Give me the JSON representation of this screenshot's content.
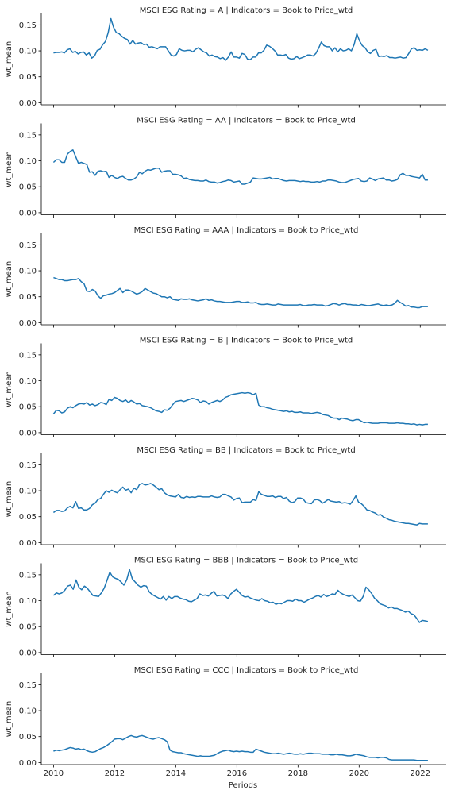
{
  "figure": {
    "xlabel": "Periods",
    "ylabel": "wt_mean"
  },
  "chart_data": [
    {
      "type": "line",
      "title": "MSCI ESG Rating = A | Indicators = Book to Price_wtd",
      "xlabel": "",
      "ylabel": "wt_mean",
      "xlim": [
        2009.6,
        2022.85
      ],
      "ylim": [
        -0.004,
        0.172
      ],
      "xticks": [
        2010,
        2012,
        2014,
        2016,
        2018,
        2020,
        2022
      ],
      "yticks": [
        0.0,
        0.05,
        0.1,
        0.15
      ],
      "ytick_labels": [
        "0.00",
        "0.05",
        "0.10",
        "0.15"
      ],
      "x_start": 2010.0,
      "x_end": 2022.25,
      "values": [
        0.096,
        0.097,
        0.097,
        0.098,
        0.096,
        0.102,
        0.104,
        0.097,
        0.099,
        0.094,
        0.097,
        0.098,
        0.092,
        0.096,
        0.086,
        0.09,
        0.101,
        0.103,
        0.112,
        0.118,
        0.135,
        0.162,
        0.145,
        0.135,
        0.133,
        0.128,
        0.124,
        0.122,
        0.113,
        0.12,
        0.113,
        0.115,
        0.116,
        0.112,
        0.113,
        0.107,
        0.108,
        0.106,
        0.104,
        0.108,
        0.108,
        0.108,
        0.1,
        0.092,
        0.09,
        0.093,
        0.104,
        0.101,
        0.1,
        0.101,
        0.101,
        0.098,
        0.103,
        0.106,
        0.102,
        0.098,
        0.096,
        0.09,
        0.092,
        0.089,
        0.088,
        0.085,
        0.087,
        0.082,
        0.088,
        0.098,
        0.088,
        0.088,
        0.086,
        0.095,
        0.093,
        0.084,
        0.083,
        0.088,
        0.088,
        0.096,
        0.096,
        0.101,
        0.111,
        0.109,
        0.105,
        0.1,
        0.092,
        0.092,
        0.091,
        0.093,
        0.086,
        0.084,
        0.085,
        0.089,
        0.085,
        0.087,
        0.089,
        0.092,
        0.092,
        0.09,
        0.095,
        0.105,
        0.117,
        0.11,
        0.108,
        0.108,
        0.1,
        0.106,
        0.098,
        0.104,
        0.1,
        0.101,
        0.104,
        0.1,
        0.112,
        0.133,
        0.119,
        0.11,
        0.106,
        0.098,
        0.095,
        0.101,
        0.103,
        0.089,
        0.09,
        0.089,
        0.091,
        0.087,
        0.087,
        0.086,
        0.087,
        0.088,
        0.086,
        0.087,
        0.095,
        0.104,
        0.106,
        0.101,
        0.102,
        0.101,
        0.104,
        0.101
      ]
    },
    {
      "type": "line",
      "title": "MSCI ESG Rating = AA | Indicators = Book to Price_wtd",
      "xlabel": "",
      "ylabel": "wt_mean",
      "xlim": [
        2009.6,
        2022.85
      ],
      "ylim": [
        -0.004,
        0.172
      ],
      "xticks": [
        2010,
        2012,
        2014,
        2016,
        2018,
        2020,
        2022
      ],
      "yticks": [
        0.0,
        0.05,
        0.1,
        0.15
      ],
      "ytick_labels": [
        "0.00",
        "0.05",
        "0.10",
        "0.15"
      ],
      "x_start": 2010.0,
      "x_end": 2022.25,
      "values": [
        0.097,
        0.102,
        0.102,
        0.097,
        0.097,
        0.113,
        0.118,
        0.121,
        0.108,
        0.095,
        0.097,
        0.095,
        0.093,
        0.078,
        0.079,
        0.072,
        0.08,
        0.081,
        0.079,
        0.08,
        0.068,
        0.072,
        0.068,
        0.066,
        0.069,
        0.07,
        0.066,
        0.063,
        0.063,
        0.065,
        0.069,
        0.078,
        0.075,
        0.08,
        0.083,
        0.082,
        0.084,
        0.086,
        0.086,
        0.078,
        0.08,
        0.081,
        0.081,
        0.074,
        0.074,
        0.073,
        0.071,
        0.066,
        0.067,
        0.064,
        0.063,
        0.062,
        0.062,
        0.061,
        0.061,
        0.063,
        0.06,
        0.059,
        0.059,
        0.057,
        0.058,
        0.06,
        0.061,
        0.063,
        0.062,
        0.059,
        0.06,
        0.061,
        0.055,
        0.055,
        0.057,
        0.059,
        0.067,
        0.066,
        0.065,
        0.065,
        0.066,
        0.067,
        0.068,
        0.065,
        0.066,
        0.066,
        0.064,
        0.062,
        0.061,
        0.062,
        0.062,
        0.062,
        0.061,
        0.06,
        0.061,
        0.06,
        0.06,
        0.059,
        0.059,
        0.06,
        0.059,
        0.061,
        0.061,
        0.063,
        0.063,
        0.062,
        0.061,
        0.059,
        0.058,
        0.058,
        0.06,
        0.062,
        0.064,
        0.065,
        0.066,
        0.061,
        0.06,
        0.061,
        0.067,
        0.065,
        0.062,
        0.065,
        0.066,
        0.067,
        0.063,
        0.063,
        0.061,
        0.062,
        0.064,
        0.073,
        0.076,
        0.072,
        0.072,
        0.07,
        0.069,
        0.068,
        0.067,
        0.074,
        0.063,
        0.063
      ]
    },
    {
      "type": "line",
      "title": "MSCI ESG Rating = AAA | Indicators = Book to Price_wtd",
      "xlabel": "",
      "ylabel": "wt_mean",
      "xlim": [
        2009.6,
        2022.85
      ],
      "ylim": [
        -0.004,
        0.172
      ],
      "xticks": [
        2010,
        2012,
        2014,
        2016,
        2018,
        2020,
        2022
      ],
      "yticks": [
        0.0,
        0.05,
        0.1,
        0.15
      ],
      "ytick_labels": [
        "0.00",
        "0.05",
        "0.10",
        "0.15"
      ],
      "x_start": 2010.0,
      "x_end": 2022.25,
      "values": [
        0.087,
        0.085,
        0.083,
        0.083,
        0.081,
        0.081,
        0.082,
        0.083,
        0.083,
        0.085,
        0.079,
        0.075,
        0.061,
        0.06,
        0.064,
        0.061,
        0.052,
        0.047,
        0.052,
        0.053,
        0.055,
        0.056,
        0.058,
        0.062,
        0.066,
        0.058,
        0.063,
        0.063,
        0.061,
        0.058,
        0.055,
        0.057,
        0.06,
        0.066,
        0.063,
        0.06,
        0.057,
        0.056,
        0.053,
        0.05,
        0.05,
        0.048,
        0.05,
        0.045,
        0.044,
        0.043,
        0.046,
        0.045,
        0.045,
        0.046,
        0.044,
        0.043,
        0.042,
        0.043,
        0.044,
        0.046,
        0.043,
        0.044,
        0.042,
        0.041,
        0.041,
        0.04,
        0.039,
        0.039,
        0.039,
        0.04,
        0.041,
        0.041,
        0.039,
        0.039,
        0.04,
        0.038,
        0.038,
        0.039,
        0.036,
        0.035,
        0.035,
        0.036,
        0.035,
        0.034,
        0.034,
        0.036,
        0.035,
        0.034,
        0.034,
        0.034,
        0.034,
        0.034,
        0.034,
        0.035,
        0.033,
        0.033,
        0.034,
        0.034,
        0.035,
        0.034,
        0.034,
        0.034,
        0.032,
        0.033,
        0.035,
        0.037,
        0.036,
        0.034,
        0.036,
        0.037,
        0.035,
        0.035,
        0.034,
        0.034,
        0.033,
        0.035,
        0.034,
        0.033,
        0.033,
        0.034,
        0.035,
        0.036,
        0.034,
        0.033,
        0.034,
        0.033,
        0.034,
        0.037,
        0.043,
        0.039,
        0.036,
        0.032,
        0.033,
        0.03,
        0.03,
        0.029,
        0.029,
        0.031,
        0.031,
        0.031
      ]
    },
    {
      "type": "line",
      "title": "MSCI ESG Rating = B | Indicators = Book to Price_wtd",
      "xlabel": "",
      "ylabel": "wt_mean",
      "xlim": [
        2009.6,
        2022.85
      ],
      "ylim": [
        -0.004,
        0.172
      ],
      "xticks": [
        2010,
        2012,
        2014,
        2016,
        2018,
        2020,
        2022
      ],
      "yticks": [
        0.0,
        0.05,
        0.1,
        0.15
      ],
      "ytick_labels": [
        "0.00",
        "0.05",
        "0.10",
        "0.15"
      ],
      "x_start": 2010.0,
      "x_end": 2022.25,
      "values": [
        0.036,
        0.043,
        0.042,
        0.038,
        0.04,
        0.047,
        0.05,
        0.048,
        0.052,
        0.055,
        0.056,
        0.055,
        0.058,
        0.053,
        0.055,
        0.052,
        0.054,
        0.058,
        0.057,
        0.054,
        0.064,
        0.062,
        0.068,
        0.066,
        0.062,
        0.06,
        0.063,
        0.058,
        0.062,
        0.059,
        0.055,
        0.056,
        0.052,
        0.051,
        0.05,
        0.048,
        0.045,
        0.042,
        0.041,
        0.039,
        0.044,
        0.043,
        0.047,
        0.054,
        0.06,
        0.061,
        0.062,
        0.06,
        0.062,
        0.064,
        0.066,
        0.065,
        0.063,
        0.058,
        0.061,
        0.06,
        0.055,
        0.058,
        0.06,
        0.062,
        0.06,
        0.063,
        0.068,
        0.07,
        0.073,
        0.074,
        0.075,
        0.076,
        0.077,
        0.076,
        0.077,
        0.076,
        0.073,
        0.076,
        0.053,
        0.05,
        0.05,
        0.048,
        0.047,
        0.045,
        0.044,
        0.043,
        0.042,
        0.041,
        0.042,
        0.04,
        0.041,
        0.039,
        0.039,
        0.04,
        0.038,
        0.038,
        0.038,
        0.037,
        0.038,
        0.039,
        0.038,
        0.035,
        0.034,
        0.033,
        0.03,
        0.028,
        0.028,
        0.025,
        0.028,
        0.027,
        0.026,
        0.024,
        0.023,
        0.025,
        0.025,
        0.022,
        0.019,
        0.02,
        0.019,
        0.018,
        0.018,
        0.018,
        0.019,
        0.019,
        0.019,
        0.018,
        0.018,
        0.018,
        0.019,
        0.018,
        0.018,
        0.017,
        0.017,
        0.016,
        0.017,
        0.015,
        0.016,
        0.015,
        0.016,
        0.016
      ]
    },
    {
      "type": "line",
      "title": "MSCI ESG Rating = BB | Indicators = Book to Price_wtd",
      "xlabel": "",
      "ylabel": "wt_mean",
      "xlim": [
        2009.6,
        2022.85
      ],
      "ylim": [
        -0.004,
        0.172
      ],
      "xticks": [
        2010,
        2012,
        2014,
        2016,
        2018,
        2020,
        2022
      ],
      "yticks": [
        0.0,
        0.05,
        0.1,
        0.15
      ],
      "ytick_labels": [
        "0.00",
        "0.05",
        "0.10",
        "0.15"
      ],
      "x_start": 2010.0,
      "x_end": 2022.25,
      "values": [
        0.058,
        0.062,
        0.062,
        0.06,
        0.061,
        0.067,
        0.07,
        0.067,
        0.079,
        0.066,
        0.067,
        0.063,
        0.063,
        0.066,
        0.073,
        0.076,
        0.083,
        0.085,
        0.093,
        0.1,
        0.097,
        0.101,
        0.098,
        0.096,
        0.102,
        0.107,
        0.101,
        0.103,
        0.096,
        0.105,
        0.102,
        0.112,
        0.114,
        0.111,
        0.112,
        0.114,
        0.111,
        0.107,
        0.102,
        0.104,
        0.096,
        0.092,
        0.09,
        0.089,
        0.088,
        0.093,
        0.087,
        0.086,
        0.089,
        0.087,
        0.088,
        0.087,
        0.089,
        0.089,
        0.088,
        0.088,
        0.088,
        0.09,
        0.088,
        0.087,
        0.088,
        0.093,
        0.093,
        0.09,
        0.088,
        0.082,
        0.085,
        0.086,
        0.077,
        0.078,
        0.078,
        0.078,
        0.083,
        0.081,
        0.098,
        0.093,
        0.091,
        0.089,
        0.089,
        0.09,
        0.087,
        0.089,
        0.089,
        0.085,
        0.087,
        0.08,
        0.077,
        0.079,
        0.086,
        0.086,
        0.084,
        0.077,
        0.076,
        0.075,
        0.082,
        0.083,
        0.081,
        0.076,
        0.079,
        0.083,
        0.08,
        0.079,
        0.078,
        0.079,
        0.076,
        0.077,
        0.076,
        0.074,
        0.081,
        0.09,
        0.078,
        0.075,
        0.07,
        0.063,
        0.062,
        0.059,
        0.057,
        0.053,
        0.054,
        0.049,
        0.047,
        0.044,
        0.043,
        0.041,
        0.04,
        0.039,
        0.038,
        0.037,
        0.037,
        0.036,
        0.035,
        0.034,
        0.037,
        0.036,
        0.036,
        0.036
      ]
    },
    {
      "type": "line",
      "title": "MSCI ESG Rating = BBB | Indicators = Book to Price_wtd",
      "xlabel": "",
      "ylabel": "wt_mean",
      "xlim": [
        2009.6,
        2022.85
      ],
      "ylim": [
        -0.004,
        0.172
      ],
      "xticks": [
        2010,
        2012,
        2014,
        2016,
        2018,
        2020,
        2022
      ],
      "yticks": [
        0.0,
        0.05,
        0.1,
        0.15
      ],
      "ytick_labels": [
        "0.00",
        "0.05",
        "0.10",
        "0.15"
      ],
      "x_start": 2010.0,
      "x_end": 2022.25,
      "values": [
        0.11,
        0.115,
        0.113,
        0.115,
        0.12,
        0.128,
        0.13,
        0.122,
        0.14,
        0.126,
        0.121,
        0.128,
        0.124,
        0.117,
        0.11,
        0.109,
        0.108,
        0.115,
        0.124,
        0.139,
        0.155,
        0.146,
        0.143,
        0.141,
        0.136,
        0.13,
        0.14,
        0.16,
        0.142,
        0.136,
        0.13,
        0.126,
        0.129,
        0.128,
        0.117,
        0.112,
        0.109,
        0.106,
        0.103,
        0.108,
        0.101,
        0.108,
        0.104,
        0.108,
        0.108,
        0.105,
        0.103,
        0.102,
        0.099,
        0.098,
        0.101,
        0.104,
        0.113,
        0.11,
        0.111,
        0.109,
        0.114,
        0.118,
        0.109,
        0.11,
        0.111,
        0.109,
        0.104,
        0.113,
        0.118,
        0.122,
        0.116,
        0.11,
        0.107,
        0.108,
        0.105,
        0.103,
        0.101,
        0.1,
        0.104,
        0.1,
        0.099,
        0.096,
        0.097,
        0.093,
        0.095,
        0.094,
        0.097,
        0.1,
        0.1,
        0.099,
        0.103,
        0.1,
        0.1,
        0.097,
        0.1,
        0.103,
        0.105,
        0.108,
        0.11,
        0.107,
        0.112,
        0.108,
        0.11,
        0.113,
        0.112,
        0.12,
        0.115,
        0.112,
        0.11,
        0.108,
        0.111,
        0.106,
        0.1,
        0.099,
        0.108,
        0.126,
        0.121,
        0.114,
        0.105,
        0.1,
        0.094,
        0.092,
        0.09,
        0.086,
        0.088,
        0.085,
        0.085,
        0.083,
        0.081,
        0.078,
        0.08,
        0.075,
        0.073,
        0.066,
        0.058,
        0.062,
        0.061,
        0.06
      ]
    },
    {
      "type": "line",
      "title": "MSCI ESG Rating = CCC | Indicators = Book to Price_wtd",
      "xlabel": "Periods",
      "ylabel": "wt_mean",
      "xlim": [
        2009.6,
        2022.85
      ],
      "ylim": [
        -0.004,
        0.172
      ],
      "xticks": [
        2010,
        2012,
        2014,
        2016,
        2018,
        2020,
        2022
      ],
      "xtick_labels": [
        "2010",
        "2012",
        "2014",
        "2016",
        "2018",
        "2020",
        "2022"
      ],
      "yticks": [
        0.0,
        0.05,
        0.1,
        0.15
      ],
      "ytick_labels": [
        "0.00",
        "0.05",
        "0.10",
        "0.15"
      ],
      "x_start": 2010.0,
      "x_end": 2022.25,
      "values": [
        0.022,
        0.024,
        0.023,
        0.024,
        0.025,
        0.027,
        0.029,
        0.028,
        0.026,
        0.027,
        0.025,
        0.026,
        0.023,
        0.021,
        0.02,
        0.021,
        0.024,
        0.027,
        0.029,
        0.032,
        0.036,
        0.04,
        0.045,
        0.046,
        0.046,
        0.044,
        0.047,
        0.05,
        0.052,
        0.05,
        0.049,
        0.051,
        0.052,
        0.05,
        0.048,
        0.046,
        0.045,
        0.047,
        0.048,
        0.046,
        0.044,
        0.04,
        0.024,
        0.021,
        0.02,
        0.019,
        0.019,
        0.017,
        0.016,
        0.015,
        0.014,
        0.013,
        0.012,
        0.013,
        0.012,
        0.012,
        0.012,
        0.013,
        0.014,
        0.017,
        0.02,
        0.022,
        0.023,
        0.024,
        0.022,
        0.021,
        0.022,
        0.021,
        0.022,
        0.021,
        0.021,
        0.02,
        0.02,
        0.026,
        0.024,
        0.022,
        0.02,
        0.019,
        0.018,
        0.017,
        0.017,
        0.018,
        0.017,
        0.016,
        0.017,
        0.018,
        0.017,
        0.016,
        0.016,
        0.017,
        0.016,
        0.017,
        0.018,
        0.018,
        0.017,
        0.017,
        0.017,
        0.016,
        0.016,
        0.016,
        0.015,
        0.015,
        0.016,
        0.015,
        0.015,
        0.014,
        0.013,
        0.013,
        0.014,
        0.016,
        0.015,
        0.014,
        0.013,
        0.011,
        0.01,
        0.01,
        0.01,
        0.009,
        0.01,
        0.01,
        0.009,
        0.006,
        0.005,
        0.005,
        0.005,
        0.005,
        0.005,
        0.005,
        0.005,
        0.005,
        0.005,
        0.004,
        0.004,
        0.004,
        0.004,
        0.004
      ]
    }
  ]
}
